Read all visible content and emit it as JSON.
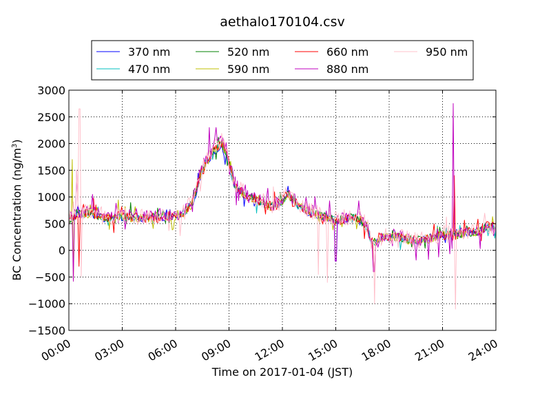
{
  "chart_data": {
    "type": "line",
    "title": "aethalo170104.csv",
    "xlabel": "Time on 2017-01-04 (JST)",
    "ylabel_text": "BC Concentration (ng/m",
    "ylabel_sup": "3",
    "ylabel_close": ")",
    "xlim": [
      0,
      24
    ],
    "ylim": [
      -1500,
      3000
    ],
    "x_ticks": [
      0,
      3,
      6,
      9,
      12,
      15,
      18,
      21,
      24
    ],
    "x_tick_labels": [
      "00:00",
      "03:00",
      "06:00",
      "09:00",
      "12:00",
      "15:00",
      "18:00",
      "21:00",
      "24:00"
    ],
    "y_ticks": [
      -1500,
      -1000,
      -500,
      0,
      500,
      1000,
      1500,
      2000,
      2500,
      3000
    ],
    "y_tick_labels": [
      "−1500",
      "−1000",
      "−500",
      "0",
      "500",
      "1000",
      "1500",
      "2000",
      "2500",
      "3000"
    ],
    "grid": true,
    "legend_position": "top",
    "baseline": [
      [
        0,
        550
      ],
      [
        0.3,
        600
      ],
      [
        0.5,
        700
      ],
      [
        0.8,
        650
      ],
      [
        1,
        700
      ],
      [
        1.5,
        650
      ],
      [
        2,
        600
      ],
      [
        3,
        620
      ],
      [
        4,
        600
      ],
      [
        5,
        620
      ],
      [
        6,
        620
      ],
      [
        6.5,
        700
      ],
      [
        7,
        900
      ],
      [
        7.4,
        1400
      ],
      [
        7.8,
        1650
      ],
      [
        8.2,
        1850
      ],
      [
        8.6,
        1950
      ],
      [
        8.8,
        1800
      ],
      [
        9,
        1600
      ],
      [
        9.3,
        1200
      ],
      [
        9.6,
        1100
      ],
      [
        10,
        1000
      ],
      [
        10.5,
        950
      ],
      [
        11,
        850
      ],
      [
        11.5,
        800
      ],
      [
        12,
        900
      ],
      [
        12.3,
        1050
      ],
      [
        12.6,
        900
      ],
      [
        13,
        800
      ],
      [
        13.5,
        700
      ],
      [
        14,
        650
      ],
      [
        14.5,
        600
      ],
      [
        15,
        550
      ],
      [
        15.5,
        580
      ],
      [
        16,
        600
      ],
      [
        16.5,
        550
      ],
      [
        16.8,
        400
      ],
      [
        17,
        150
      ],
      [
        17.3,
        150
      ],
      [
        17.6,
        250
      ],
      [
        18,
        250
      ],
      [
        18.5,
        250
      ],
      [
        19,
        200
      ],
      [
        19.5,
        180
      ],
      [
        20,
        200
      ],
      [
        20.5,
        250
      ],
      [
        21,
        300
      ],
      [
        21.5,
        280
      ],
      [
        22,
        300
      ],
      [
        22.5,
        330
      ],
      [
        23,
        350
      ],
      [
        23.5,
        450
      ],
      [
        24,
        420
      ]
    ],
    "series": [
      {
        "name": "370 nm",
        "color": "#0000ff",
        "jitter": 70,
        "spike": 0.5,
        "shift": 0
      },
      {
        "name": "470 nm",
        "color": "#00bfbf",
        "jitter": 75,
        "spike": 0.55,
        "shift": 10
      },
      {
        "name": "520 nm",
        "color": "#008000",
        "jitter": 80,
        "spike": 0.6,
        "shift": 20
      },
      {
        "name": "590 nm",
        "color": "#bfbf00",
        "jitter": 90,
        "spike": 0.7,
        "shift": 15
      },
      {
        "name": "660 nm",
        "color": "#ff0000",
        "jitter": 100,
        "spike": 0.8,
        "shift": 25
      },
      {
        "name": "880 nm",
        "color": "#bf00bf",
        "jitter": 130,
        "spike": 1.1,
        "shift": 60
      },
      {
        "name": "950 nm",
        "color": "#ffc0cb",
        "jitter": 160,
        "spike": 1.3,
        "shift": 40
      }
    ],
    "spikes": [
      {
        "x": 0.22,
        "y": 1700,
        "series": [
          "590 nm"
        ]
      },
      {
        "x": 0.28,
        "y": -580,
        "series": [
          "590 nm",
          "880 nm"
        ]
      },
      {
        "x": 0.45,
        "y": 1500,
        "series": [
          "950 nm",
          "880 nm"
        ]
      },
      {
        "x": 0.55,
        "y": -300,
        "series": [
          "950 nm",
          "660 nm"
        ]
      },
      {
        "x": 0.6,
        "y": 2650,
        "series": [
          "950 nm"
        ]
      },
      {
        "x": 0.7,
        "y": -500,
        "series": [
          "950 nm"
        ]
      },
      {
        "x": 7.9,
        "y": 2300,
        "series": [
          "880 nm"
        ]
      },
      {
        "x": 8.3,
        "y": 2300,
        "series": [
          "880 nm"
        ]
      },
      {
        "x": 14.0,
        "y": -450,
        "series": [
          "950 nm"
        ]
      },
      {
        "x": 14.5,
        "y": -600,
        "series": [
          "950 nm"
        ]
      },
      {
        "x": 15.0,
        "y": -200,
        "series": [
          "880 nm",
          "370 nm"
        ]
      },
      {
        "x": 17.2,
        "y": -1000,
        "series": [
          "950 nm"
        ]
      },
      {
        "x": 17.15,
        "y": -400,
        "series": [
          "660 nm",
          "880 nm"
        ]
      },
      {
        "x": 21.6,
        "y": 2750,
        "series": [
          "880 nm"
        ]
      },
      {
        "x": 21.65,
        "y": 1400,
        "series": [
          "660 nm"
        ]
      },
      {
        "x": 21.7,
        "y": -1100,
        "series": [
          "950 nm"
        ]
      }
    ]
  }
}
